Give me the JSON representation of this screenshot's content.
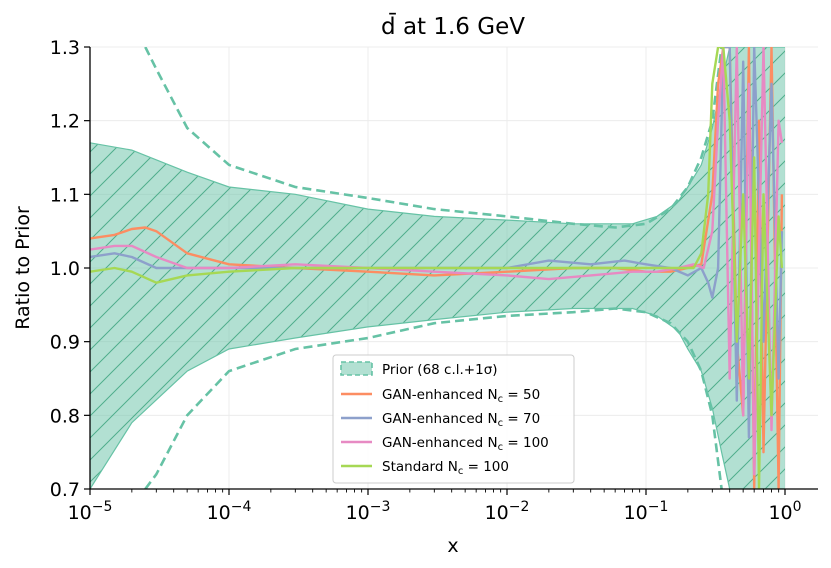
{
  "chart_data": {
    "type": "line",
    "title": "d̄ at 1.6 GeV",
    "xlabel": "x",
    "ylabel": "Ratio to Prior",
    "xscale": "log",
    "xlim": [
      1e-05,
      1.6
    ],
    "ylim": [
      0.7,
      1.3
    ],
    "x_ticks": [
      {
        "value": 1e-05,
        "base": "10",
        "exp": "−5"
      },
      {
        "value": 0.0001,
        "base": "10",
        "exp": "−4"
      },
      {
        "value": 0.001,
        "base": "10",
        "exp": "−3"
      },
      {
        "value": 0.01,
        "base": "10",
        "exp": "−2"
      },
      {
        "value": 0.1,
        "base": "10",
        "exp": "−1"
      },
      {
        "value": 1,
        "base": "10",
        "exp": "0"
      }
    ],
    "y_ticks": [
      {
        "value": 0.7,
        "label": "0.7"
      },
      {
        "value": 0.8,
        "label": "0.8"
      },
      {
        "value": 0.9,
        "label": "0.9"
      },
      {
        "value": 1.0,
        "label": "1.0"
      },
      {
        "value": 1.1,
        "label": "1.1"
      },
      {
        "value": 1.2,
        "label": "1.2"
      },
      {
        "value": 1.3,
        "label": "1.3"
      }
    ],
    "grid": true,
    "legend_position": "lower-center",
    "prior_band": {
      "name": "Prior (68 c.l.+1σ)",
      "color": "#66c2a5",
      "x": [
        1e-05,
        2e-05,
        5e-05,
        0.0001,
        0.0003,
        0.001,
        0.003,
        0.01,
        0.03,
        0.08,
        0.12,
        0.17,
        0.2,
        0.25,
        0.3,
        0.35,
        0.4,
        0.5,
        0.7,
        0.9,
        1.0
      ],
      "upper": [
        1.17,
        1.16,
        1.13,
        1.11,
        1.1,
        1.08,
        1.07,
        1.065,
        1.06,
        1.06,
        1.07,
        1.09,
        1.11,
        1.14,
        1.19,
        1.25,
        1.3,
        1.3,
        1.3,
        1.3,
        1.3
      ],
      "lower": [
        0.7,
        0.79,
        0.86,
        0.89,
        0.905,
        0.92,
        0.93,
        0.94,
        0.945,
        0.945,
        0.935,
        0.915,
        0.89,
        0.86,
        0.81,
        0.75,
        0.7,
        0.7,
        0.7,
        0.7,
        0.7
      ],
      "dash_x": [
        2.5e-05,
        3e-05,
        5e-05,
        0.0001,
        0.0003,
        0.001,
        0.003,
        0.01,
        0.03,
        0.06,
        0.1,
        0.15,
        0.2,
        0.25,
        0.3,
        0.35
      ],
      "dash_upper": [
        1.3,
        1.27,
        1.19,
        1.14,
        1.11,
        1.095,
        1.08,
        1.07,
        1.06,
        1.055,
        1.06,
        1.08,
        1.11,
        1.15,
        1.2,
        1.3
      ],
      "dash_lower": [
        0.7,
        0.72,
        0.8,
        0.86,
        0.89,
        0.905,
        0.925,
        0.935,
        0.94,
        0.945,
        0.94,
        0.925,
        0.9,
        0.86,
        0.8,
        0.7
      ]
    },
    "series": [
      {
        "name": "GAN-enhanced N_c = 50",
        "label_main": "GAN-enhanced N",
        "label_sub": "c",
        "label_tail": " = 50",
        "color": "#fc8d62",
        "x": [
          1e-05,
          1.5e-05,
          2e-05,
          2.5e-05,
          3e-05,
          5e-05,
          0.0001,
          0.0003,
          0.001,
          0.003,
          0.01,
          0.03,
          0.06,
          0.1,
          0.15,
          0.2,
          0.25,
          0.3,
          0.33,
          0.36,
          0.4,
          0.45,
          0.5,
          0.55,
          0.6,
          0.65,
          0.7,
          0.8,
          0.9,
          0.95
        ],
        "values": [
          1.04,
          1.045,
          1.053,
          1.055,
          1.05,
          1.02,
          1.005,
          1.0,
          0.995,
          0.99,
          0.995,
          1.0,
          1.0,
          0.995,
          0.995,
          1.0,
          1.005,
          1.1,
          1.25,
          1.3,
          1.3,
          0.9,
          0.8,
          1.3,
          0.7,
          1.2,
          0.75,
          1.3,
          0.7,
          1.1
        ]
      },
      {
        "name": "GAN-enhanced N_c = 70",
        "label_main": "GAN-enhanced N",
        "label_sub": "c",
        "label_tail": " = 70",
        "color": "#8da0cb",
        "x": [
          1e-05,
          1.5e-05,
          2e-05,
          3e-05,
          5e-05,
          0.0001,
          0.0003,
          0.001,
          0.003,
          0.01,
          0.02,
          0.04,
          0.07,
          0.1,
          0.15,
          0.2,
          0.25,
          0.28,
          0.3,
          0.33,
          0.36,
          0.4,
          0.45,
          0.5,
          0.55,
          0.6,
          0.7,
          0.8,
          0.9,
          0.95
        ],
        "values": [
          1.015,
          1.02,
          1.015,
          1.0,
          1.0,
          1.0,
          1.0,
          1.0,
          1.0,
          1.0,
          1.01,
          1.005,
          1.01,
          1.005,
          1.0,
          0.99,
          1.0,
          0.98,
          0.96,
          1.0,
          1.3,
          1.3,
          0.82,
          1.28,
          0.77,
          1.3,
          0.9,
          1.25,
          0.85,
          1.05
        ]
      },
      {
        "name": "GAN-enhanced N_c = 100",
        "label_main": "GAN-enhanced N",
        "label_sub": "c",
        "label_tail": " = 100",
        "color": "#e78ac3",
        "x": [
          1e-05,
          1.5e-05,
          2e-05,
          3e-05,
          5e-05,
          0.0001,
          0.0003,
          0.001,
          0.003,
          0.01,
          0.02,
          0.04,
          0.08,
          0.12,
          0.17,
          0.22,
          0.26,
          0.3,
          0.33,
          0.36,
          0.4,
          0.45,
          0.5,
          0.55,
          0.6,
          0.7,
          0.8,
          0.9,
          0.95
        ],
        "values": [
          1.025,
          1.03,
          1.03,
          1.015,
          1.0,
          1.0,
          1.005,
          1.0,
          0.995,
          0.99,
          0.985,
          0.99,
          0.995,
          0.995,
          1.0,
          1.005,
          1.0,
          1.05,
          1.2,
          1.3,
          0.85,
          1.3,
          0.8,
          1.25,
          0.72,
          1.3,
          0.78,
          1.2,
          1.17
        ]
      },
      {
        "name": "Standard N_c = 100",
        "label_main": "Standard N",
        "label_sub": "c",
        "label_tail": " = 100",
        "color": "#a6d854",
        "x": [
          1e-05,
          1.5e-05,
          2e-05,
          3e-05,
          5e-05,
          0.0001,
          0.0003,
          0.001,
          0.003,
          0.01,
          0.03,
          0.1,
          0.17,
          0.22,
          0.25,
          0.28,
          0.3,
          0.33,
          0.36,
          0.4,
          0.45,
          0.5,
          0.55,
          0.6,
          0.65,
          0.7,
          0.8,
          0.9,
          0.95
        ],
        "values": [
          0.995,
          1.0,
          0.995,
          0.98,
          0.99,
          0.995,
          1.0,
          1.0,
          1.0,
          1.0,
          1.0,
          1.0,
          1.0,
          1.0,
          1.02,
          1.1,
          1.25,
          1.3,
          1.3,
          1.2,
          0.9,
          1.1,
          0.85,
          1.15,
          0.7,
          1.1,
          0.8,
          1.07,
          1.0
        ]
      }
    ]
  }
}
